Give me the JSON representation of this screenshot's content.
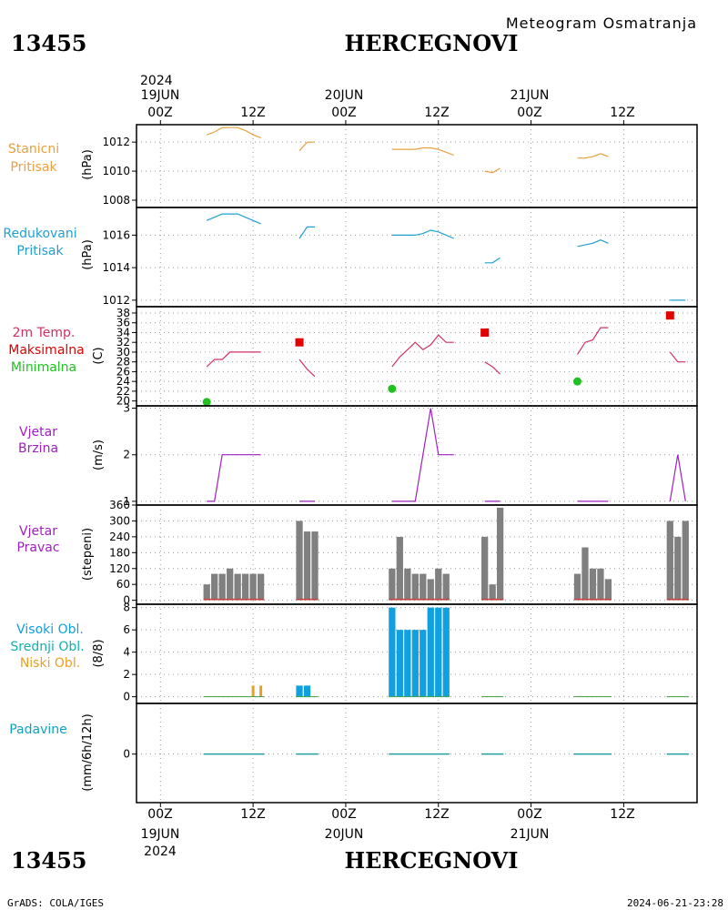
{
  "header": {
    "subtitle": "Meteogram Osmatranja",
    "station_id": "13455",
    "station_name": "HERCEGNOVI"
  },
  "top_axis": {
    "year": "2024",
    "dates": [
      "19JUN",
      "20JUN",
      "21JUN"
    ],
    "hours": [
      "00Z",
      "12Z",
      "00Z",
      "12Z",
      "00Z",
      "12Z"
    ]
  },
  "bottom_axis": {
    "hours": [
      "00Z",
      "12Z",
      "00Z",
      "12Z",
      "00Z",
      "12Z"
    ],
    "dates": [
      "19JUN",
      "20JUN",
      "21JUN"
    ],
    "year": "2024"
  },
  "footer": {
    "left": "GrADS: COLA/IGES",
    "right": "2024-06-21-23:28"
  },
  "colors": {
    "pressure": "#e8a040",
    "reduced": "#20a0d0",
    "temp_line": "#d03060",
    "tmax": "#e00000",
    "tmin": "#20c020",
    "wind": "#a020c0",
    "dir_bar": "#808080",
    "cloud_high": "#10a0e0",
    "cloud_low": "#e8a020",
    "precip": "#20a0a0"
  },
  "panels": {
    "station_pressure": {
      "label1": "Stanicni",
      "label2": "Pritisak",
      "unit": "(hPa)",
      "ticks": [
        "1008",
        "1010",
        "1012"
      ]
    },
    "reduced_pressure": {
      "label1": "Redukovani",
      "label2": "Pritisak",
      "unit": "(hPa)",
      "ticks": [
        "1012",
        "1014",
        "1016"
      ]
    },
    "temperature": {
      "label1": "2m Temp.",
      "label2": "Maksimalna",
      "label3": "Minimalna",
      "unit": "(C)",
      "ticks": [
        "20",
        "22",
        "24",
        "26",
        "28",
        "30",
        "32",
        "34",
        "36",
        "38"
      ]
    },
    "wind_speed": {
      "label1": "Vjetar",
      "label2": "Brzina",
      "unit": "(m/s)",
      "ticks": [
        "1",
        "2",
        "3"
      ]
    },
    "wind_dir": {
      "label1": "Vjetar",
      "label2": "Pravac",
      "unit": "(stepeni)",
      "ticks": [
        "0",
        "60",
        "120",
        "180",
        "240",
        "300",
        "360"
      ]
    },
    "clouds": {
      "label1": "Visoki Obl.",
      "label2": "Srednji Obl.",
      "label3": "Niski Obl.",
      "unit": "(8/8)",
      "ticks": [
        "0",
        "2",
        "4",
        "6",
        "8"
      ]
    },
    "precip": {
      "label1": "Padavine",
      "unit": "(mm/6h/12h)",
      "ticks": [
        "0"
      ]
    }
  },
  "chart_data": [
    {
      "type": "line",
      "name": "station_pressure",
      "ylabel": "(hPa)",
      "ylim": [
        1007.5,
        1013.2
      ],
      "x_unit": "hours since 19JUN 00Z",
      "segments": [
        {
          "x": [
            6,
            7,
            8,
            9,
            10,
            11,
            12,
            13
          ],
          "y": [
            1012.5,
            1012.7,
            1013.0,
            1013.0,
            1013.0,
            1012.8,
            1012.5,
            1012.3
          ]
        },
        {
          "x": [
            18,
            19,
            20
          ],
          "y": [
            1011.4,
            1012.0,
            1012.0
          ]
        },
        {
          "x": [
            30,
            31,
            32,
            33,
            34,
            35,
            36,
            37,
            38
          ],
          "y": [
            1011.5,
            1011.5,
            1011.5,
            1011.5,
            1011.6,
            1011.6,
            1011.5,
            1011.3,
            1011.1
          ]
        },
        {
          "x": [
            42,
            43,
            44
          ],
          "y": [
            1010.0,
            1009.9,
            1010.2
          ]
        },
        {
          "x": [
            54,
            55,
            56,
            57,
            58
          ],
          "y": [
            1010.9,
            1010.9,
            1011.0,
            1011.2,
            1011.0
          ]
        },
        {
          "x": [
            66,
            67,
            68
          ],
          "y": [
            1007.5,
            1007.5,
            1007.5
          ]
        }
      ]
    },
    {
      "type": "line",
      "name": "reduced_pressure",
      "ylabel": "(hPa)",
      "ylim": [
        1011.6,
        1017.7
      ],
      "x_unit": "hours since 19JUN 00Z",
      "segments": [
        {
          "x": [
            6,
            7,
            8,
            9,
            10,
            11,
            12,
            13
          ],
          "y": [
            1016.9,
            1017.1,
            1017.3,
            1017.3,
            1017.3,
            1017.1,
            1016.9,
            1016.7
          ]
        },
        {
          "x": [
            18,
            19,
            20
          ],
          "y": [
            1015.8,
            1016.5,
            1016.5
          ]
        },
        {
          "x": [
            30,
            31,
            32,
            33,
            34,
            35,
            36,
            37,
            38
          ],
          "y": [
            1016.0,
            1016.0,
            1016.0,
            1016.0,
            1016.1,
            1016.3,
            1016.2,
            1016.0,
            1015.8
          ]
        },
        {
          "x": [
            42,
            43,
            44
          ],
          "y": [
            1014.3,
            1014.3,
            1014.6
          ]
        },
        {
          "x": [
            54,
            55,
            56,
            57,
            58
          ],
          "y": [
            1015.3,
            1015.4,
            1015.5,
            1015.7,
            1015.5
          ]
        },
        {
          "x": [
            66,
            67,
            68
          ],
          "y": [
            1012.0,
            1012.0,
            1012.0
          ]
        }
      ]
    },
    {
      "type": "line",
      "name": "temperature",
      "ylabel": "(C)",
      "ylim": [
        19,
        39.3
      ],
      "x_unit": "hours since 19JUN 00Z",
      "series": [
        {
          "segments": [
            {
              "x": [
                6,
                7,
                8,
                9,
                10,
                11,
                12,
                13
              ],
              "y": [
                27,
                28.5,
                28.5,
                30,
                30,
                30,
                30,
                30
              ]
            },
            {
              "x": [
                18,
                19,
                20
              ],
              "y": [
                28.5,
                26.5,
                25
              ]
            },
            {
              "x": [
                30,
                31,
                32,
                33,
                34,
                35,
                36,
                37,
                38
              ],
              "y": [
                27,
                29,
                30.5,
                32,
                30.5,
                31.5,
                33.5,
                32,
                32
              ]
            },
            {
              "x": [
                42,
                43,
                44
              ],
              "y": [
                28,
                27,
                25.5
              ]
            },
            {
              "x": [
                54,
                55,
                56,
                57,
                58
              ],
              "y": [
                29.5,
                32,
                32.5,
                35,
                35
              ]
            },
            {
              "x": [
                66,
                67,
                68
              ],
              "y": [
                30,
                28,
                28
              ]
            }
          ]
        },
        {
          "kind": "max",
          "x": [
            18,
            42,
            66
          ],
          "y": [
            32,
            34,
            37.5
          ]
        },
        {
          "kind": "min",
          "x": [
            6,
            30,
            54
          ],
          "y": [
            19.8,
            22.5,
            24
          ]
        }
      ]
    },
    {
      "type": "line",
      "name": "wind_speed",
      "ylabel": "(m/s)",
      "ylim": [
        0.92,
        3.05
      ],
      "x_unit": "hours since 19JUN 00Z",
      "segments": [
        {
          "x": [
            6,
            7,
            8,
            9,
            10,
            11,
            12,
            13
          ],
          "y": [
            1,
            1,
            2,
            2,
            2,
            2,
            2,
            2
          ]
        },
        {
          "x": [
            18,
            19,
            20
          ],
          "y": [
            1,
            1,
            1
          ]
        },
        {
          "x": [
            30,
            31,
            32,
            33,
            34,
            35,
            36,
            37,
            38
          ],
          "y": [
            1,
            1,
            1,
            1,
            2,
            3,
            2,
            2,
            2
          ]
        },
        {
          "x": [
            42,
            43,
            44
          ],
          "y": [
            1,
            1,
            1
          ]
        },
        {
          "x": [
            54,
            55,
            56,
            57,
            58
          ],
          "y": [
            1,
            1,
            1,
            1,
            1
          ]
        },
        {
          "x": [
            66,
            67,
            68
          ],
          "y": [
            1,
            2,
            1
          ]
        }
      ]
    },
    {
      "type": "bar",
      "name": "wind_direction",
      "ylabel": "(stepeni)",
      "ylim": [
        -15,
        360
      ],
      "x_unit": "hours since 19JUN 00Z",
      "x": [
        6,
        7,
        8,
        9,
        10,
        11,
        12,
        13,
        18,
        19,
        20,
        30,
        31,
        32,
        33,
        34,
        35,
        36,
        37,
        42,
        43,
        44,
        54,
        55,
        56,
        57,
        58,
        66,
        67,
        68
      ],
      "values": [
        60,
        100,
        100,
        120,
        100,
        100,
        100,
        100,
        300,
        260,
        260,
        120,
        240,
        120,
        100,
        100,
        80,
        120,
        100,
        240,
        60,
        350,
        100,
        200,
        120,
        120,
        80,
        300,
        240,
        300
      ]
    },
    {
      "type": "bar",
      "name": "cloud_cover",
      "ylabel": "(8/8)",
      "ylim": [
        -0.6,
        8.3
      ],
      "x_unit": "hours since 19JUN 00Z",
      "series": [
        {
          "kind": "high",
          "x": [
            18,
            19,
            30,
            31,
            32,
            33,
            34,
            35,
            36,
            37
          ],
          "values": [
            1,
            1,
            8,
            6,
            6,
            6,
            6,
            8,
            8,
            8
          ]
        },
        {
          "kind": "low",
          "x": [
            12,
            13
          ],
          "values": [
            1,
            1
          ]
        }
      ]
    },
    {
      "type": "bar",
      "name": "precipitation",
      "ylabel": "(mm/6h/12h)",
      "ylim": [
        -4.5,
        4.7
      ],
      "x_unit": "hours since 19JUN 00Z",
      "x": [
        6,
        7,
        8,
        9,
        10,
        11,
        12,
        13,
        18,
        19,
        20,
        30,
        31,
        32,
        33,
        34,
        35,
        36,
        37,
        42,
        43,
        44,
        54,
        55,
        56,
        57,
        58,
        66,
        67,
        68
      ],
      "values": [
        0,
        0,
        0,
        0,
        0,
        0,
        0,
        0,
        0,
        0,
        0,
        0,
        0,
        0,
        0,
        0,
        0,
        0,
        0,
        0,
        0,
        0,
        0,
        0,
        0,
        0,
        0,
        0,
        0,
        0
      ]
    }
  ]
}
